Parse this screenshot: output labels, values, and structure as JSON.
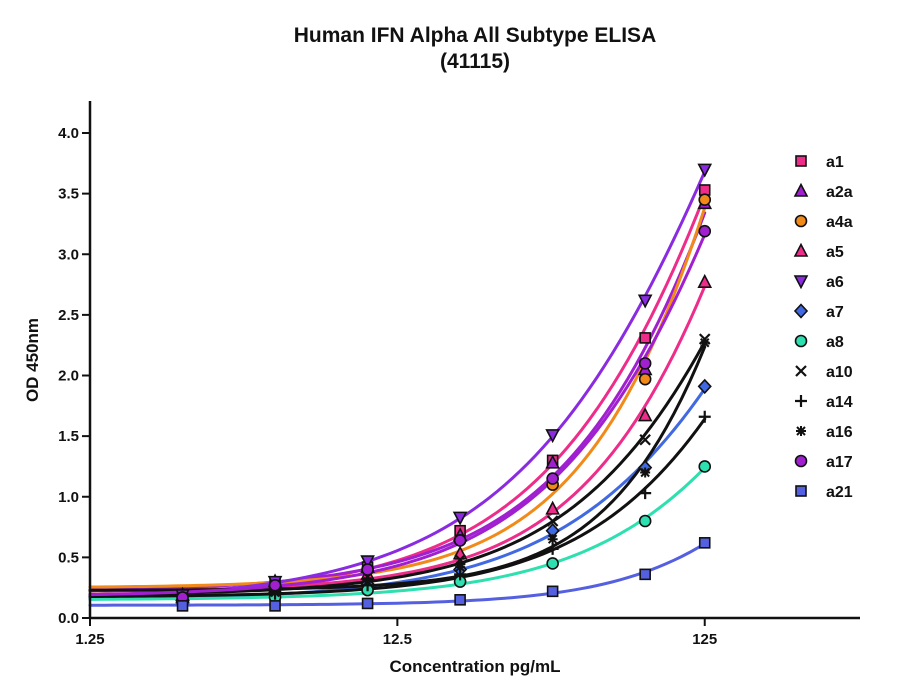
{
  "chart_data": {
    "type": "scatter",
    "title": "Human IFN Alpha All Subtype ELISA",
    "subtitle": "(41115)",
    "xlabel": "Concentration pg/mL",
    "ylabel": "OD 450nm",
    "x_scale": "log",
    "xlim": [
      1.25,
      400
    ],
    "ylim": [
      0,
      4.2
    ],
    "x_ticks": [
      "1.25",
      "12.5",
      "125"
    ],
    "y_ticks": [
      "0.0",
      "0.5",
      "1.0",
      "1.5",
      "2.0",
      "2.5",
      "3.0",
      "3.5",
      "4.0"
    ],
    "legend_position": "right",
    "x": [
      2.5,
      5,
      10,
      20,
      40,
      80,
      125
    ],
    "series": [
      {
        "name": "a1",
        "marker": "square",
        "color": "#ee2d8a",
        "values": [
          0.18,
          0.28,
          0.42,
          0.72,
          1.3,
          2.31,
          3.53
        ]
      },
      {
        "name": "a2a",
        "marker": "triangle-up",
        "color": "#a020d0",
        "values": [
          0.19,
          0.3,
          0.42,
          0.68,
          1.28,
          2.05,
          3.42
        ]
      },
      {
        "name": "a4a",
        "marker": "circle",
        "color": "#f28a1a",
        "values": [
          0.18,
          0.27,
          0.4,
          0.64,
          1.1,
          1.97,
          3.45
        ]
      },
      {
        "name": "a5",
        "marker": "triangle-up",
        "color": "#ee2d8a",
        "values": [
          0.17,
          0.25,
          0.36,
          0.53,
          0.9,
          1.67,
          2.77
        ]
      },
      {
        "name": "a6",
        "marker": "triangle-down",
        "color": "#8a2be2",
        "values": [
          0.19,
          0.3,
          0.47,
          0.83,
          1.51,
          2.62,
          3.7
        ]
      },
      {
        "name": "a7",
        "marker": "diamond",
        "color": "#4169e1",
        "values": [
          0.14,
          0.2,
          0.28,
          0.4,
          0.72,
          1.24,
          1.91
        ]
      },
      {
        "name": "a8",
        "marker": "circle",
        "color": "#2ee0b0",
        "values": [
          0.13,
          0.17,
          0.23,
          0.3,
          0.45,
          0.8,
          1.25
        ]
      },
      {
        "name": "a10",
        "marker": "x",
        "color": "#111111",
        "values": [
          0.16,
          0.23,
          0.34,
          0.48,
          0.8,
          1.47,
          2.3
        ]
      },
      {
        "name": "a14",
        "marker": "plus",
        "color": "#111111",
        "values": [
          0.14,
          0.2,
          0.27,
          0.36,
          0.57,
          1.03,
          1.66
        ]
      },
      {
        "name": "a16",
        "marker": "star",
        "color": "#111111",
        "values": [
          0.15,
          0.21,
          0.3,
          0.42,
          0.65,
          1.2,
          2.27
        ]
      },
      {
        "name": "a17",
        "marker": "circle",
        "color": "#a020d0",
        "values": [
          0.17,
          0.27,
          0.4,
          0.64,
          1.15,
          2.1,
          3.19
        ]
      },
      {
        "name": "a21",
        "marker": "square",
        "color": "#5560e0",
        "values": [
          0.1,
          0.1,
          0.12,
          0.15,
          0.22,
          0.36,
          0.62
        ]
      }
    ]
  }
}
